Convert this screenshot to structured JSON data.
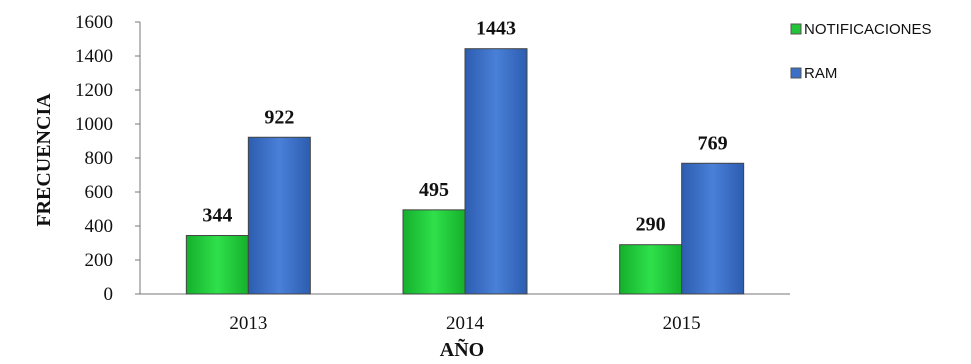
{
  "chart_data": {
    "type": "bar",
    "categories": [
      "2013",
      "2014",
      "2015"
    ],
    "series": [
      {
        "name": "NOTIFICACIONES",
        "values": [
          344,
          495,
          290
        ],
        "color": "#22c43a"
      },
      {
        "name": "RAM",
        "values": [
          922,
          1443,
          769
        ],
        "color": "#3c70c6"
      }
    ],
    "data_labels": {
      "NOTIFICACIONES": [
        "344",
        "495",
        "290"
      ],
      "RAM": [
        "922",
        "1443",
        "769"
      ]
    },
    "xlabel": "AÑO",
    "ylabel": "FRECUENCIA",
    "ylim": [
      0,
      1600
    ],
    "yticks": [
      "0",
      "200",
      "400",
      "600",
      "800",
      "1000",
      "1200",
      "1400",
      "1600"
    ],
    "legend_position": "top-right",
    "grid": false
  }
}
